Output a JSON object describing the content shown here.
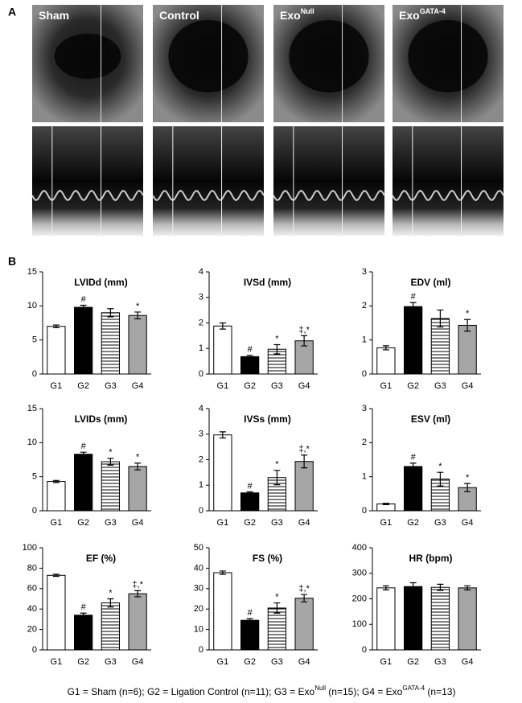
{
  "panel_a": {
    "label": "A",
    "images": [
      {
        "base": "Sham",
        "sup": null
      },
      {
        "base": "Control",
        "sup": null
      },
      {
        "base": "Exo",
        "sup": "Null"
      },
      {
        "base": "Exo",
        "sup": "GATA-4"
      }
    ]
  },
  "panel_b": {
    "label": "B"
  },
  "caption": [
    "G1 = Sham (n=6); G2 = Ligation Control (n=11); G3 = Exo",
    "Null",
    " (n=15); G4 = Exo",
    "GATA-4",
    " (n=13)"
  ],
  "chart_data": [
    {
      "type": "bar",
      "title": "LVIDd (mm)",
      "categories": [
        "G1",
        "G2",
        "G3",
        "G4"
      ],
      "values": [
        7.0,
        9.8,
        9.0,
        8.6
      ],
      "errors": [
        0.2,
        0.3,
        0.6,
        0.5
      ],
      "annotations": [
        null,
        "#",
        null,
        "*"
      ],
      "colors": [
        "#ffffff",
        "#000000",
        "stripes",
        "#a6a6a6"
      ],
      "ylim": [
        0,
        15
      ],
      "yticks": [
        0,
        5,
        10,
        15
      ]
    },
    {
      "type": "bar",
      "title": "IVSd (mm)",
      "categories": [
        "G1",
        "G2",
        "G3",
        "G4"
      ],
      "values": [
        1.88,
        0.68,
        0.97,
        1.3
      ],
      "errors": [
        0.12,
        0.05,
        0.18,
        0.2
      ],
      "annotations": [
        null,
        "#",
        "*",
        "‡,*"
      ],
      "colors": [
        "#ffffff",
        "#000000",
        "stripes",
        "#a6a6a6"
      ],
      "ylim": [
        0,
        4
      ],
      "yticks": [
        0,
        1,
        2,
        3,
        4
      ]
    },
    {
      "type": "bar",
      "title": "EDV (ml)",
      "categories": [
        "G1",
        "G2",
        "G3",
        "G4"
      ],
      "values": [
        0.77,
        1.98,
        1.63,
        1.43
      ],
      "errors": [
        0.06,
        0.12,
        0.25,
        0.17
      ],
      "annotations": [
        null,
        "#",
        null,
        "*"
      ],
      "colors": [
        "#ffffff",
        "#000000",
        "stripes",
        "#a6a6a6"
      ],
      "ylim": [
        0,
        3
      ],
      "yticks": [
        0,
        1,
        2,
        3
      ]
    },
    {
      "type": "bar",
      "title": "LVIDs (mm)",
      "categories": [
        "G1",
        "G2",
        "G3",
        "G4"
      ],
      "values": [
        4.3,
        8.3,
        7.2,
        6.5
      ],
      "errors": [
        0.15,
        0.3,
        0.5,
        0.5
      ],
      "annotations": [
        null,
        "#",
        "*",
        "*"
      ],
      "colors": [
        "#ffffff",
        "#000000",
        "stripes",
        "#a6a6a6"
      ],
      "ylim": [
        0,
        15
      ],
      "yticks": [
        0,
        5,
        10,
        15
      ]
    },
    {
      "type": "bar",
      "title": "IVSs (mm)",
      "categories": [
        "G1",
        "G2",
        "G3",
        "G4"
      ],
      "values": [
        2.97,
        0.7,
        1.3,
        1.93
      ],
      "errors": [
        0.12,
        0.04,
        0.28,
        0.25
      ],
      "annotations": [
        null,
        "#",
        "*",
        "‡,*"
      ],
      "colors": [
        "#ffffff",
        "#000000",
        "stripes",
        "#a6a6a6"
      ],
      "ylim": [
        0,
        4
      ],
      "yticks": [
        0,
        1,
        2,
        3,
        4
      ]
    },
    {
      "type": "bar",
      "title": "ESV (ml)",
      "categories": [
        "G1",
        "G2",
        "G3",
        "G4"
      ],
      "values": [
        0.2,
        1.3,
        0.93,
        0.68
      ],
      "errors": [
        0.02,
        0.1,
        0.2,
        0.12
      ],
      "annotations": [
        null,
        "#",
        "*",
        "*"
      ],
      "colors": [
        "#ffffff",
        "#000000",
        "stripes",
        "#a6a6a6"
      ],
      "ylim": [
        0,
        3
      ],
      "yticks": [
        0,
        1,
        2,
        3
      ]
    },
    {
      "type": "bar",
      "title": "EF (%)",
      "categories": [
        "G1",
        "G2",
        "G3",
        "G4"
      ],
      "values": [
        73,
        34,
        46,
        55
      ],
      "errors": [
        1,
        2,
        4,
        3
      ],
      "annotations": [
        null,
        "#",
        "*",
        "‡,*"
      ],
      "colors": [
        "#ffffff",
        "#000000",
        "stripes",
        "#a6a6a6"
      ],
      "ylim": [
        0,
        100
      ],
      "yticks": [
        0,
        20,
        40,
        60,
        80,
        100
      ]
    },
    {
      "type": "bar",
      "title": "FS (%)",
      "categories": [
        "G1",
        "G2",
        "G3",
        "G4"
      ],
      "values": [
        37.8,
        14.5,
        20.5,
        25.3
      ],
      "errors": [
        0.8,
        0.8,
        2.5,
        1.8
      ],
      "annotations": [
        null,
        "#",
        "*",
        "‡,*"
      ],
      "colors": [
        "#ffffff",
        "#000000",
        "stripes",
        "#a6a6a6"
      ],
      "ylim": [
        0,
        50
      ],
      "yticks": [
        0,
        10,
        20,
        30,
        40,
        50
      ]
    },
    {
      "type": "bar",
      "title": "HR (bpm)",
      "categories": [
        "G1",
        "G2",
        "G3",
        "G4"
      ],
      "values": [
        243,
        248,
        245,
        243
      ],
      "errors": [
        8,
        15,
        12,
        8
      ],
      "annotations": [
        null,
        null,
        null,
        null
      ],
      "colors": [
        "#ffffff",
        "#000000",
        "stripes",
        "#a6a6a6"
      ],
      "ylim": [
        0,
        400
      ],
      "yticks": [
        0,
        100,
        200,
        300,
        400
      ]
    }
  ]
}
